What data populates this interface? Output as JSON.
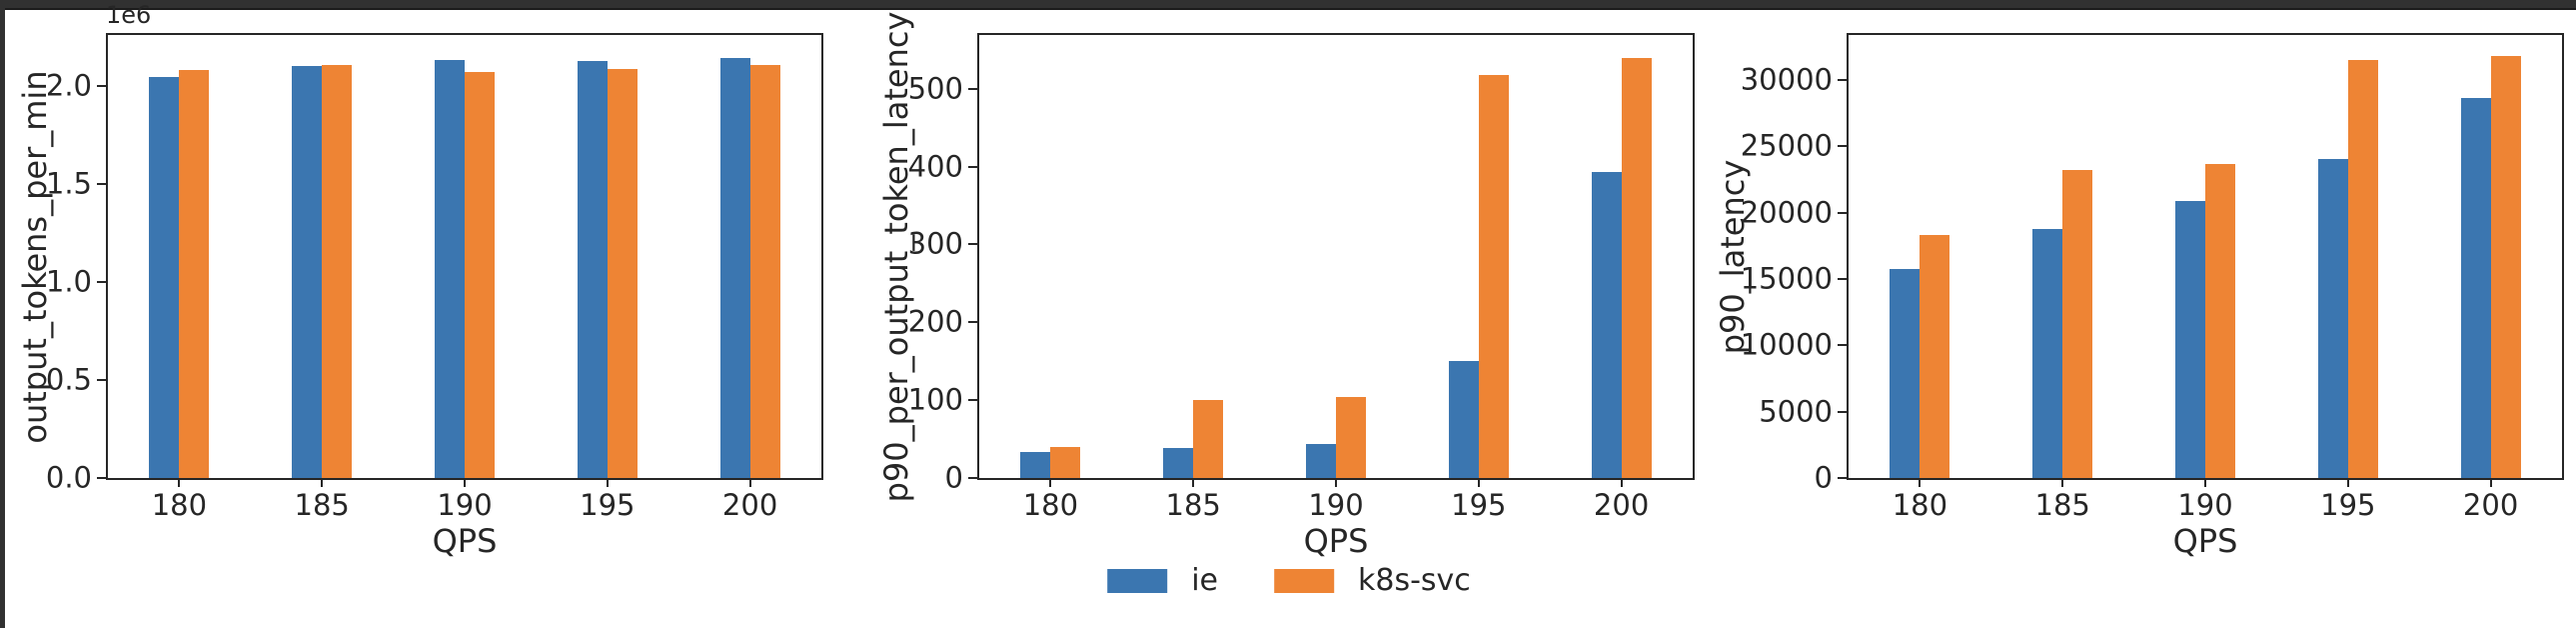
{
  "figure": {
    "legend": {
      "position": "lower center",
      "items": [
        {
          "label": "ie",
          "color": "#3b76b0"
        },
        {
          "label": "k8s-svc",
          "color": "#ee8434"
        }
      ]
    },
    "frame_color": "#313131",
    "background_color": "#ffffff"
  },
  "chart_data": [
    {
      "type": "bar",
      "title": "",
      "xlabel": "QPS",
      "ylabel": "output_tokens_per_min",
      "offset_text": "1e6",
      "categories": [
        "180",
        "185",
        "190",
        "195",
        "200"
      ],
      "series": [
        {
          "name": "ie",
          "color": "#3b76b0",
          "values": [
            2048000,
            2105000,
            2135000,
            2128000,
            2148000
          ]
        },
        {
          "name": "k8s-svc",
          "color": "#ee8434",
          "values": [
            2085000,
            2110000,
            2076000,
            2088000,
            2110000
          ]
        }
      ],
      "ylim": [
        0,
        2263000
      ],
      "yticks": {
        "values": [
          0,
          500000,
          1000000,
          1500000,
          2000000
        ],
        "labels": [
          "0.0",
          "0.5",
          "1.0",
          "1.5",
          "2.0"
        ]
      },
      "grid": false,
      "legend_position": "none"
    },
    {
      "type": "bar",
      "title": "",
      "xlabel": "QPS",
      "ylabel": "p90_per_output_token_latency",
      "offset_text": "",
      "categories": [
        "180",
        "185",
        "190",
        "195",
        "200"
      ],
      "series": [
        {
          "name": "ie",
          "color": "#3b76b0",
          "values": [
            33,
            38,
            44,
            150,
            393
          ]
        },
        {
          "name": "k8s-svc",
          "color": "#ee8434",
          "values": [
            40,
            100,
            104,
            518,
            540
          ]
        }
      ],
      "ylim": [
        0,
        569
      ],
      "yticks": {
        "values": [
          0,
          100,
          200,
          300,
          400,
          500
        ],
        "labels": [
          "0",
          "100",
          "200",
          "300",
          "400",
          "500"
        ]
      },
      "grid": false,
      "legend_position": "none"
    },
    {
      "type": "bar",
      "title": "",
      "xlabel": "QPS",
      "ylabel": "p90_latency",
      "offset_text": "",
      "categories": [
        "180",
        "185",
        "190",
        "195",
        "200"
      ],
      "series": [
        {
          "name": "ie",
          "color": "#3b76b0",
          "values": [
            15750,
            18800,
            20850,
            24050,
            28650
          ]
        },
        {
          "name": "k8s-svc",
          "color": "#ee8434",
          "values": [
            18350,
            23200,
            23700,
            31550,
            31800
          ]
        }
      ],
      "ylim": [
        0,
        33400
      ],
      "yticks": {
        "values": [
          0,
          5000,
          10000,
          15000,
          20000,
          25000,
          30000
        ],
        "labels": [
          "0",
          "5000",
          "10000",
          "15000",
          "20000",
          "25000",
          "30000"
        ]
      },
      "grid": false,
      "legend_position": "none"
    }
  ]
}
